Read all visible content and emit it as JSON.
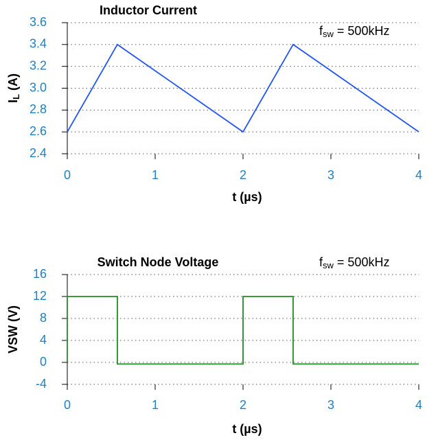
{
  "chart_data": [
    {
      "type": "line",
      "title": "Inductor Current",
      "ylabel": {
        "base": "I",
        "sub": "L",
        "rest": " (A)"
      },
      "xlabel": "t (µs)",
      "annotation": {
        "base": "f",
        "sub": "sw",
        "rest": " = 500kHz"
      },
      "x": [
        0,
        0.57,
        2,
        2.57,
        4
      ],
      "values": [
        2.6,
        3.4,
        2.6,
        3.4,
        2.6
      ],
      "color": "#2255ee",
      "xlim": [
        0,
        4
      ],
      "xticks": [
        0,
        1,
        2,
        3,
        4
      ],
      "ylim": [
        2.4,
        3.6
      ],
      "yticks": [
        2.4,
        2.6,
        2.8,
        {
          "value": 3,
          "label": "3.0"
        },
        3.2,
        3.4,
        3.6
      ],
      "grid": true
    },
    {
      "type": "line",
      "title": "Switch Node Voltage",
      "ylabel": {
        "base": "VSW (V)"
      },
      "xlabel": "t (µs)",
      "annotation": {
        "base": "f",
        "sub": "sw",
        "rest": " = 500kHz"
      },
      "x": [
        0,
        0,
        0.57,
        0.57,
        2,
        2,
        2.57,
        2.57,
        4
      ],
      "values": [
        0,
        12,
        12,
        -0.3,
        -0.3,
        12,
        12,
        -0.3,
        -0.3
      ],
      "color": "#228b22",
      "xlim": [
        0,
        4
      ],
      "xticks": [
        0,
        1,
        2,
        3,
        4
      ],
      "ylim": [
        -4,
        16
      ],
      "yticks": [
        -4,
        0,
        4,
        8,
        12,
        16
      ],
      "grid": true
    }
  ]
}
